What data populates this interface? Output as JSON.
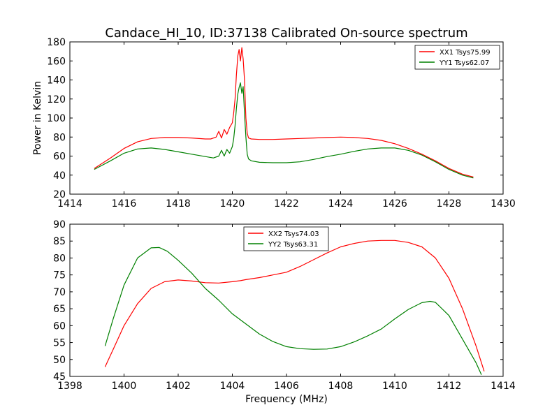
{
  "title": "Candace_HI_10, ID:37138 Calibrated On-source spectrum",
  "colors": {
    "red": "#ff0000",
    "green": "#008000"
  },
  "chart_data": [
    {
      "type": "line",
      "panel": "top",
      "xlim": [
        1414,
        1430
      ],
      "ylim": [
        20,
        180
      ],
      "xticks": [
        1414,
        1416,
        1418,
        1420,
        1422,
        1424,
        1426,
        1428,
        1430
      ],
      "yticks": [
        20,
        40,
        60,
        80,
        100,
        120,
        140,
        160,
        180
      ],
      "xlabel": "",
      "ylabel": "Power in Kelvin",
      "legend_position": "top-right",
      "series": [
        {
          "name": "XX1 Tsys75.99",
          "color": "#ff0000",
          "x": [
            1414.9,
            1415.5,
            1416.0,
            1416.5,
            1417.0,
            1417.5,
            1418.0,
            1418.5,
            1419.0,
            1419.2,
            1419.4,
            1419.5,
            1419.6,
            1419.7,
            1419.8,
            1419.9,
            1420.0,
            1420.05,
            1420.1,
            1420.15,
            1420.2,
            1420.25,
            1420.3,
            1420.35,
            1420.4,
            1420.45,
            1420.5,
            1420.55,
            1420.6,
            1420.7,
            1421.0,
            1421.5,
            1422.0,
            1422.5,
            1423.0,
            1423.5,
            1424.0,
            1424.5,
            1425.0,
            1425.5,
            1426.0,
            1426.5,
            1427.0,
            1427.5,
            1428.0,
            1428.5,
            1428.9
          ],
          "y": [
            47,
            58,
            68,
            75,
            78.5,
            79.5,
            79.5,
            79,
            78,
            78,
            80,
            86,
            79,
            88,
            83,
            90,
            95,
            105,
            120,
            145,
            165,
            172,
            160,
            174,
            162,
            140,
            100,
            84,
            79,
            78,
            77.5,
            77.5,
            78,
            78.5,
            79,
            79.5,
            80,
            79.5,
            78.5,
            76.5,
            73,
            68,
            62,
            55,
            47,
            41,
            38
          ]
        },
        {
          "name": "YY1 Tsys62.07",
          "color": "#008000",
          "x": [
            1414.9,
            1415.5,
            1416.0,
            1416.5,
            1417.0,
            1417.5,
            1418.0,
            1418.5,
            1419.0,
            1419.3,
            1419.5,
            1419.6,
            1419.7,
            1419.8,
            1419.9,
            1420.0,
            1420.05,
            1420.1,
            1420.15,
            1420.2,
            1420.25,
            1420.3,
            1420.35,
            1420.4,
            1420.45,
            1420.5,
            1420.55,
            1420.6,
            1420.7,
            1421.0,
            1421.5,
            1422.0,
            1422.5,
            1423.0,
            1423.5,
            1424.0,
            1424.5,
            1425.0,
            1425.5,
            1426.0,
            1426.5,
            1427.0,
            1427.5,
            1428.0,
            1428.5,
            1428.9
          ],
          "y": [
            46,
            55,
            63,
            67.5,
            68.5,
            67,
            64.5,
            62,
            59.5,
            58,
            60,
            66,
            60,
            67,
            63,
            70,
            78,
            92,
            110,
            125,
            132,
            137,
            126,
            133,
            105,
            80,
            62,
            57,
            55,
            53.5,
            53,
            53,
            54,
            56.5,
            59.5,
            62,
            65,
            67.5,
            68.5,
            68.5,
            66,
            61,
            54,
            46,
            40,
            37
          ]
        }
      ]
    },
    {
      "type": "line",
      "panel": "bottom",
      "xlim": [
        1398,
        1414
      ],
      "ylim": [
        45,
        90
      ],
      "xticks": [
        1398,
        1400,
        1402,
        1404,
        1406,
        1408,
        1410,
        1412,
        1414
      ],
      "yticks": [
        45,
        50,
        55,
        60,
        65,
        70,
        75,
        80,
        85,
        90
      ],
      "xlabel": "Frequency (MHz)",
      "ylabel": "",
      "legend_position": "top-center",
      "series": [
        {
          "name": "XX2 Tsys74.03",
          "color": "#ff0000",
          "x": [
            1399.3,
            1399.6,
            1400.0,
            1400.5,
            1401.0,
            1401.5,
            1402.0,
            1402.5,
            1403.0,
            1403.5,
            1404.0,
            1404.3,
            1404.5,
            1405.0,
            1405.5,
            1406.0,
            1406.5,
            1407.0,
            1407.5,
            1408.0,
            1408.5,
            1409.0,
            1409.5,
            1410.0,
            1410.5,
            1411.0,
            1411.5,
            1412.0,
            1412.5,
            1413.0,
            1413.3
          ],
          "y": [
            47.8,
            53,
            60,
            66.5,
            71,
            73,
            73.5,
            73.2,
            72.7,
            72.6,
            73,
            73.3,
            73.6,
            74.2,
            75,
            75.8,
            77.5,
            79.5,
            81.5,
            83.3,
            84.3,
            85,
            85.2,
            85.2,
            84.6,
            83.3,
            80,
            74,
            65,
            54,
            46.5
          ]
        },
        {
          "name": "YY2 Tsys63.31",
          "color": "#008000",
          "x": [
            1399.3,
            1399.6,
            1400.0,
            1400.5,
            1401.0,
            1401.3,
            1401.6,
            1402.0,
            1402.5,
            1403.0,
            1403.5,
            1404.0,
            1404.5,
            1405.0,
            1405.5,
            1406.0,
            1406.5,
            1407.0,
            1407.5,
            1408.0,
            1408.5,
            1409.0,
            1409.5,
            1410.0,
            1410.5,
            1411.0,
            1411.3,
            1411.5,
            1412.0,
            1412.5,
            1413.0,
            1413.2
          ],
          "y": [
            54,
            62,
            72,
            80,
            83,
            83.1,
            82,
            79.3,
            75.5,
            71,
            67.5,
            63.5,
            60.5,
            57.5,
            55.3,
            53.8,
            53.2,
            53,
            53.1,
            53.8,
            55.2,
            57,
            59,
            62,
            64.8,
            66.8,
            67.2,
            66.9,
            63,
            56,
            49,
            45.5
          ]
        }
      ]
    }
  ]
}
